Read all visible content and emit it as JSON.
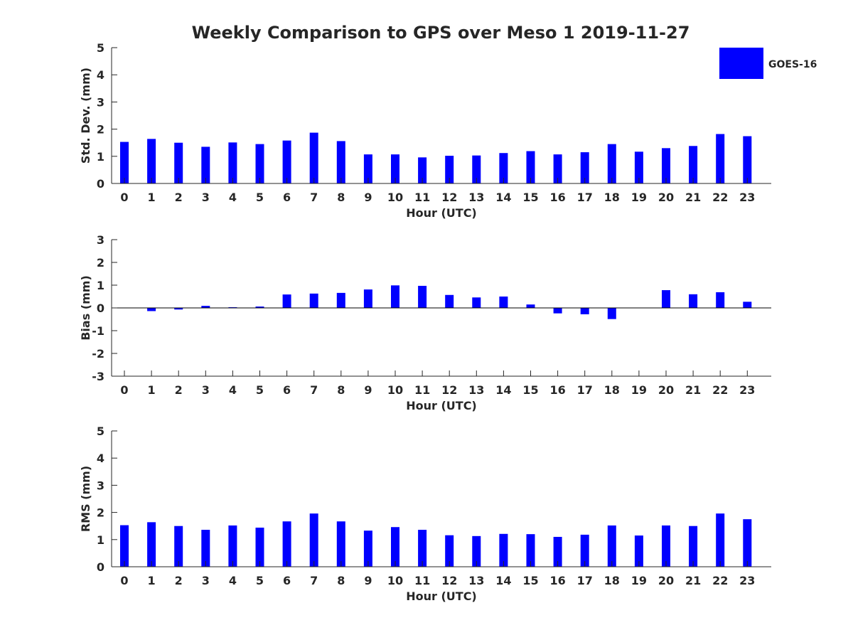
{
  "title": "Weekly Comparison to GPS over Meso 1 2019-11-27",
  "legend": {
    "label": "GOES-16",
    "color": "#0000ff",
    "placement": "top-right"
  },
  "colors": {
    "bar": "#0000ff",
    "axis": "#262626",
    "text": "#262626"
  },
  "chart_data": [
    {
      "type": "bar",
      "title": "Weekly Comparison to GPS over Meso 1 2019-11-27",
      "xlabel": "Hour (UTC)",
      "ylabel": "Std. Dev. (mm)",
      "categories": [
        "0",
        "1",
        "2",
        "3",
        "4",
        "5",
        "6",
        "7",
        "8",
        "9",
        "10",
        "11",
        "12",
        "13",
        "14",
        "15",
        "16",
        "17",
        "18",
        "19",
        "20",
        "21",
        "22",
        "23"
      ],
      "ylim": [
        0,
        5
      ],
      "yticks": [
        0,
        1,
        2,
        3,
        4,
        5
      ],
      "series": [
        {
          "name": "GOES-16",
          "values": [
            1.53,
            1.64,
            1.5,
            1.35,
            1.51,
            1.45,
            1.58,
            1.87,
            1.56,
            1.07,
            1.07,
            0.96,
            1.02,
            1.03,
            1.12,
            1.19,
            1.07,
            1.15,
            1.45,
            1.17,
            1.3,
            1.38,
            1.82,
            1.74
          ]
        }
      ]
    },
    {
      "type": "bar",
      "xlabel": "Hour (UTC)",
      "ylabel": "Bias (mm)",
      "categories": [
        "0",
        "1",
        "2",
        "3",
        "4",
        "5",
        "6",
        "7",
        "8",
        "9",
        "10",
        "11",
        "12",
        "13",
        "14",
        "15",
        "16",
        "17",
        "18",
        "19",
        "20",
        "21",
        "22",
        "23"
      ],
      "ylim": [
        -3,
        3
      ],
      "yticks": [
        -3,
        -2,
        -1,
        0,
        1,
        2,
        3
      ],
      "zero_line": true,
      "series": [
        {
          "name": "GOES-16",
          "values": [
            0.0,
            -0.14,
            -0.07,
            0.09,
            0.03,
            0.06,
            0.59,
            0.63,
            0.66,
            0.81,
            0.99,
            0.97,
            0.57,
            0.46,
            0.5,
            0.15,
            -0.24,
            -0.28,
            -0.49,
            0.0,
            0.78,
            0.6,
            0.69,
            0.27
          ]
        }
      ]
    },
    {
      "type": "bar",
      "xlabel": "Hour (UTC)",
      "ylabel": "RMS (mm)",
      "categories": [
        "0",
        "1",
        "2",
        "3",
        "4",
        "5",
        "6",
        "7",
        "8",
        "9",
        "10",
        "11",
        "12",
        "13",
        "14",
        "15",
        "16",
        "17",
        "18",
        "19",
        "20",
        "21",
        "22",
        "23"
      ],
      "ylim": [
        0,
        5
      ],
      "yticks": [
        0,
        1,
        2,
        3,
        4,
        5
      ],
      "series": [
        {
          "name": "GOES-16",
          "values": [
            1.53,
            1.64,
            1.5,
            1.36,
            1.52,
            1.44,
            1.67,
            1.96,
            1.67,
            1.33,
            1.46,
            1.36,
            1.16,
            1.13,
            1.21,
            1.2,
            1.1,
            1.18,
            1.52,
            1.15,
            1.52,
            1.5,
            1.96,
            1.75
          ]
        }
      ]
    }
  ]
}
